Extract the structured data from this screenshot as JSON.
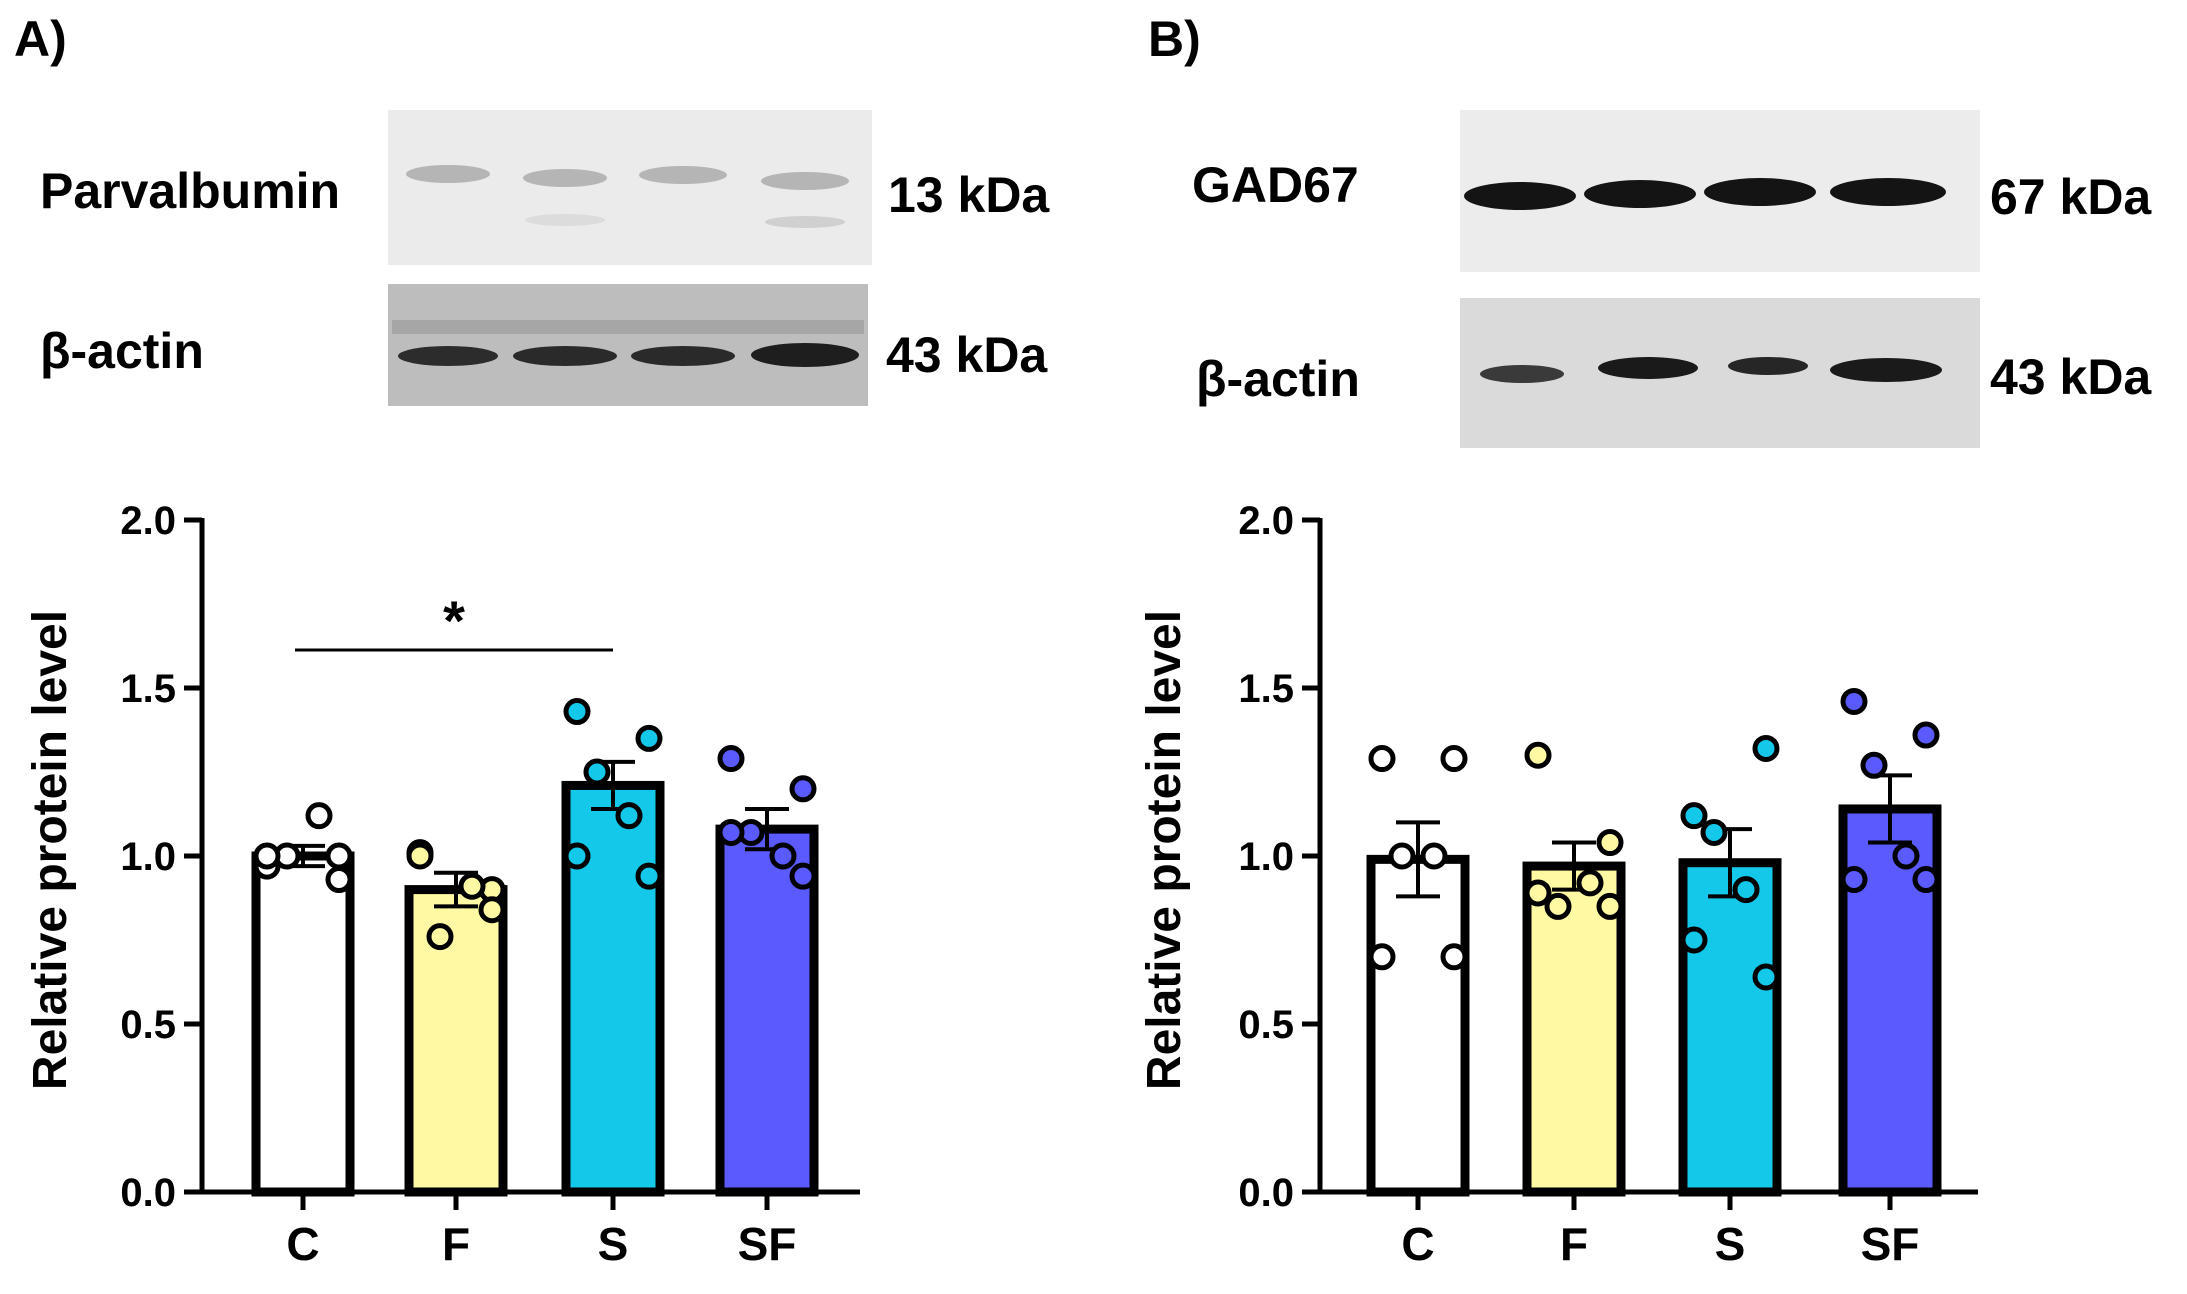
{
  "colors": {
    "C": "#ffffff",
    "F": "#fff9a3",
    "S": "#14c8ea",
    "SF": "#5a5aff",
    "axis": "#000000"
  },
  "panels": [
    {
      "letter": "A)",
      "blots": [
        {
          "protein": "Parvalbumin",
          "size": "13 kDa",
          "tone": "faint"
        },
        {
          "protein": "β-actin",
          "size": "43 kDa",
          "tone": "dark-bg"
        }
      ],
      "significance": {
        "label": "*",
        "from": "C",
        "to": "S"
      }
    },
    {
      "letter": "B)",
      "blots": [
        {
          "protein": "GAD67",
          "size": "67 kDa",
          "tone": "strong"
        },
        {
          "protein": "β-actin",
          "size": "43 kDa",
          "tone": "medium"
        }
      ]
    }
  ],
  "chart_data": [
    {
      "type": "bar",
      "title": "",
      "xlabel": "",
      "ylabel": "Relative protein level",
      "ylim": [
        0,
        2.0
      ],
      "yticks": [
        "0.0",
        "0.5",
        "1.0",
        "1.5",
        "2.0"
      ],
      "categories": [
        "C",
        "F",
        "S",
        "SF"
      ],
      "values": [
        1.0,
        0.9,
        1.21,
        1.08
      ],
      "sem": [
        0.03,
        0.05,
        0.07,
        0.06
      ],
      "points": [
        [
          0.97,
          1.0,
          1.0,
          1.12,
          1.0,
          0.93
        ],
        [
          1.01,
          0.9,
          0.76,
          0.91,
          1.0,
          0.84
        ],
        [
          1.43,
          1.35,
          1.25,
          1.12,
          1.0,
          0.94
        ],
        [
          1.29,
          1.2,
          1.07,
          1.0,
          1.07,
          0.94
        ]
      ],
      "grid": false
    },
    {
      "type": "bar",
      "title": "",
      "xlabel": "",
      "ylabel": "Relative protein level",
      "ylim": [
        0,
        2.0
      ],
      "yticks": [
        "0.0",
        "0.5",
        "1.0",
        "1.5",
        "2.0"
      ],
      "categories": [
        "C",
        "F",
        "S",
        "SF"
      ],
      "values": [
        0.99,
        0.97,
        0.98,
        1.14
      ],
      "sem": [
        0.11,
        0.07,
        0.1,
        0.1
      ],
      "points": [
        [
          1.29,
          1.29,
          1.0,
          1.0,
          0.7,
          0.7
        ],
        [
          1.3,
          1.04,
          0.85,
          0.92,
          0.89,
          0.85
        ],
        [
          1.12,
          1.32,
          1.07,
          0.9,
          0.75,
          0.64
        ],
        [
          1.46,
          1.36,
          1.27,
          1.0,
          0.93,
          0.93
        ]
      ],
      "grid": false
    }
  ]
}
